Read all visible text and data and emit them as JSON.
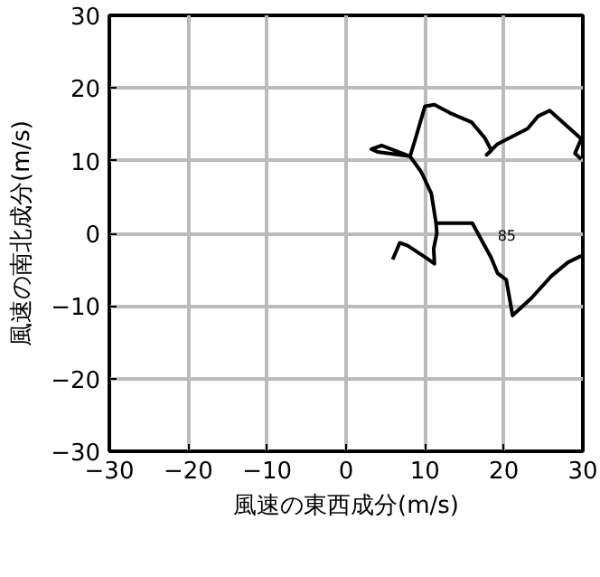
{
  "chart_data": {
    "type": "line",
    "xlabel": "風速の東西成分(m/s)",
    "ylabel": "風速の南北成分(m/s)",
    "xlim": [
      -30,
      30
    ],
    "ylim": [
      -30,
      30
    ],
    "xticks": [
      {
        "value": -30,
        "label": "−30"
      },
      {
        "value": -20,
        "label": "−20"
      },
      {
        "value": -10,
        "label": "−10"
      },
      0,
      10,
      20,
      30
    ],
    "yticks": [
      {
        "value": -30,
        "label": "−30"
      },
      {
        "value": -20,
        "label": "−20"
      },
      {
        "value": -10,
        "label": "−10"
      },
      0,
      10,
      20,
      30
    ],
    "grid": true,
    "marker": "none",
    "line_style": "solid",
    "series": [
      {
        "color": "#000000",
        "x": [
          29.8,
          29,
          29.8,
          25.8,
          24.3,
          23,
          19.2,
          17.8,
          18.4,
          17.6,
          15.9,
          13.3,
          11.2,
          10,
          8.7,
          8.1,
          4.5,
          3.2,
          4,
          8.1,
          9.5,
          10.8,
          11.4,
          11.5,
          11.1,
          11.2,
          10.2,
          7.8,
          6.8,
          5.9
        ],
        "values": [
          10.2,
          11,
          13,
          16.9,
          16.1,
          14.4,
          12.3,
          10.8,
          11.4,
          13.1,
          15.3,
          16.5,
          17.7,
          17.5,
          12.7,
          10.6,
          12.1,
          11.6,
          11.2,
          10.6,
          8.5,
          5.5,
          1.4,
          0,
          -2.1,
          -4.2,
          -3.4,
          -1.7,
          -1.3,
          -3.6
        ]
      },
      {
        "color": "#000000",
        "x": [
          11.4,
          16,
          16.7,
          18.4,
          19.2,
          20.3,
          21.1,
          23.5,
          26,
          28.1,
          29.8
        ],
        "values": [
          1.4,
          1.4,
          0,
          -3.4,
          -5.5,
          -6.4,
          -11.3,
          -8.9,
          -5.9,
          -4,
          -3.1
        ]
      }
    ],
    "annotations": [
      "85"
    ]
  }
}
